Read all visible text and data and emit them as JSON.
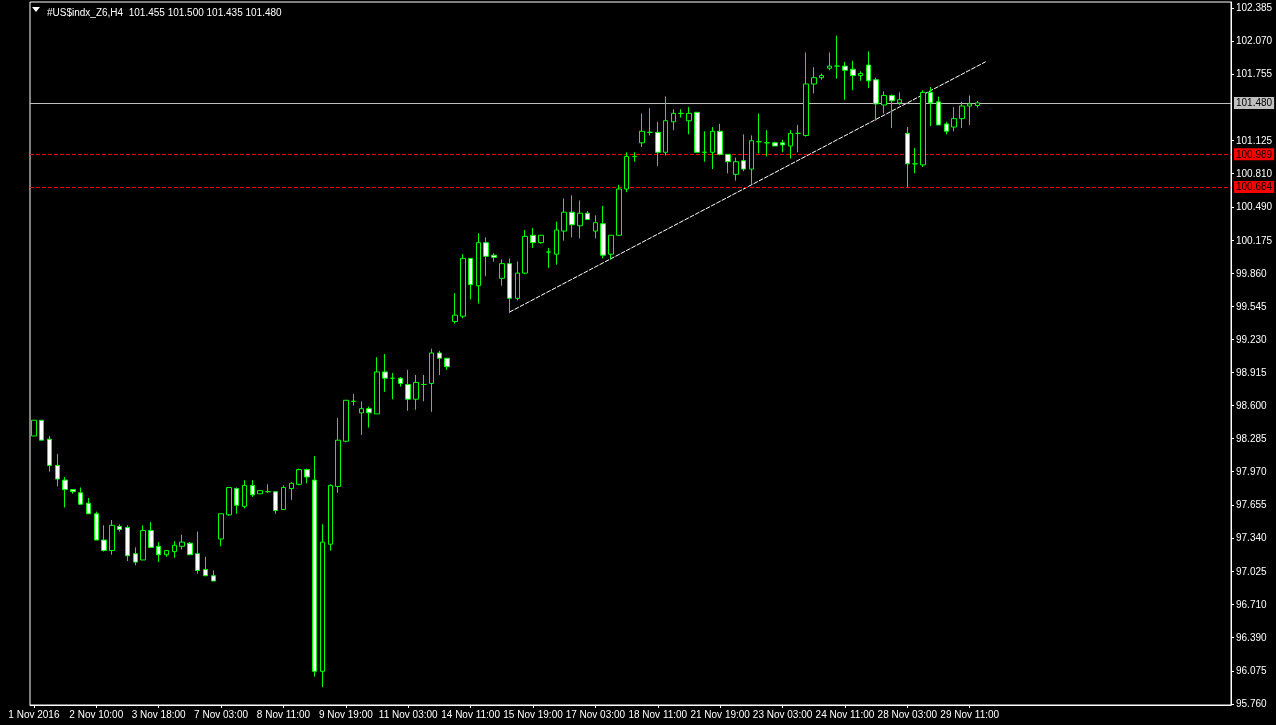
{
  "chart_data": {
    "type": "candlestick",
    "title": "#US$indx_Z6,H4  101.455 101.500 101.435 101.480",
    "color": "#00ff00",
    "categories": [
      "1 Nov 2016",
      null,
      null,
      null,
      null,
      null,
      null,
      null,
      "2 Nov 10:00",
      null,
      null,
      null,
      null,
      null,
      null,
      null,
      "3 Nov 18:00",
      null,
      null,
      null,
      null,
      null,
      null,
      null,
      "7 Nov 03:00",
      null,
      null,
      null,
      null,
      null,
      null,
      null,
      "8 Nov 11:00",
      null,
      null,
      null,
      null,
      null,
      null,
      null,
      "9 Nov 19:00",
      null,
      null,
      null,
      null,
      null,
      null,
      null,
      "11 Nov 03:00",
      null,
      null,
      null,
      null,
      null,
      null,
      null,
      "14 Nov 11:00",
      null,
      null,
      null,
      null,
      null,
      null,
      null,
      "15 Nov 19:00",
      null,
      null,
      null,
      null,
      null,
      null,
      null,
      "17 Nov 03:00",
      null,
      null,
      null,
      null,
      null,
      null,
      null,
      "18 Nov 11:00",
      null,
      null,
      null,
      null,
      null,
      null,
      null,
      "21 Nov 19:00",
      null,
      null,
      null,
      null,
      null,
      null,
      null,
      "23 Nov 03:00",
      null,
      null,
      null,
      null,
      null,
      null,
      null,
      "24 Nov 11:00",
      null,
      null,
      null,
      null,
      null,
      null,
      null,
      "28 Nov 03:00",
      null,
      null,
      null,
      null,
      null,
      null,
      null,
      "29 Nov 11:00",
      null,
      null,
      null,
      null,
      null,
      null,
      null,
      null,
      null,
      null,
      null,
      null,
      null,
      null,
      null,
      null,
      null,
      null,
      null,
      null,
      null,
      null,
      null,
      null,
      null,
      null,
      null,
      null,
      null,
      null,
      null,
      null,
      null
    ],
    "ohlc": [
      [
        98.31,
        98.46,
        98.31,
        98.46
      ],
      [
        98.46,
        98.46,
        98.27,
        98.27
      ],
      [
        98.28,
        98.31,
        97.97,
        98.03
      ],
      [
        98.03,
        98.14,
        97.83,
        97.9
      ],
      [
        97.89,
        97.92,
        97.63,
        97.8
      ],
      [
        97.8,
        97.8,
        97.76,
        97.78
      ],
      [
        97.77,
        97.82,
        97.66,
        97.66
      ],
      [
        97.67,
        97.72,
        97.57,
        97.57
      ],
      [
        97.57,
        97.59,
        97.32,
        97.32
      ],
      [
        97.32,
        97.46,
        97.21,
        97.22
      ],
      [
        97.22,
        97.51,
        97.18,
        97.46
      ],
      [
        97.45,
        97.47,
        97.4,
        97.42
      ],
      [
        97.44,
        97.46,
        97.12,
        97.17
      ],
      [
        97.19,
        97.25,
        97.08,
        97.11
      ],
      [
        97.13,
        97.46,
        97.13,
        97.41
      ],
      [
        97.41,
        97.49,
        97.25,
        97.25
      ],
      [
        97.26,
        97.3,
        97.11,
        97.18
      ],
      [
        97.18,
        97.22,
        97.16,
        97.22
      ],
      [
        97.21,
        97.31,
        97.15,
        97.27
      ],
      [
        97.26,
        97.37,
        97.23,
        97.3
      ],
      [
        97.29,
        97.3,
        97.18,
        97.18
      ],
      [
        97.19,
        97.4,
        97.0,
        97.03
      ],
      [
        97.04,
        97.16,
        96.98,
        96.98
      ],
      [
        96.98,
        97.03,
        96.93,
        96.93
      ],
      [
        97.33,
        97.57,
        97.26,
        97.57
      ],
      [
        97.56,
        97.82,
        97.55,
        97.82
      ],
      [
        97.81,
        97.82,
        97.57,
        97.65
      ],
      [
        97.64,
        97.89,
        97.62,
        97.84
      ],
      [
        97.84,
        97.89,
        97.73,
        97.75
      ],
      [
        97.76,
        97.79,
        97.76,
        97.79
      ],
      [
        97.78,
        97.85,
        97.77,
        97.78
      ],
      [
        97.78,
        97.78,
        97.57,
        97.6
      ],
      [
        97.61,
        97.84,
        97.61,
        97.82
      ],
      [
        97.81,
        97.87,
        97.7,
        97.86
      ],
      [
        97.85,
        98.0,
        97.84,
        97.99
      ],
      [
        97.99,
        98.0,
        97.86,
        97.92
      ],
      [
        97.89,
        98.12,
        96.02,
        96.07
      ],
      [
        96.07,
        97.47,
        95.92,
        97.3
      ],
      [
        97.28,
        97.85,
        97.22,
        97.84
      ],
      [
        97.83,
        98.48,
        97.77,
        98.27
      ],
      [
        98.26,
        98.65,
        98.25,
        98.65
      ],
      [
        98.64,
        98.71,
        98.6,
        98.64
      ],
      [
        98.53,
        98.64,
        98.32,
        98.57
      ],
      [
        98.57,
        98.59,
        98.39,
        98.53
      ],
      [
        98.52,
        99.06,
        98.52,
        98.92
      ],
      [
        98.92,
        99.09,
        98.73,
        98.86
      ],
      [
        98.86,
        98.91,
        98.66,
        98.86
      ],
      [
        98.86,
        98.87,
        98.78,
        98.81
      ],
      [
        98.8,
        98.94,
        98.55,
        98.66
      ],
      [
        98.66,
        98.89,
        98.56,
        98.82
      ],
      [
        98.8,
        98.89,
        98.64,
        98.8
      ],
      [
        98.81,
        99.14,
        98.54,
        99.1
      ],
      [
        99.1,
        99.12,
        98.89,
        99.05
      ],
      [
        99.05,
        99.05,
        98.94,
        98.97
      ],
      [
        99.4,
        99.67,
        99.38,
        99.46
      ],
      [
        99.45,
        100.04,
        99.43,
        100.0
      ],
      [
        100.0,
        100.0,
        99.61,
        99.75
      ],
      [
        99.74,
        100.24,
        99.57,
        100.15
      ],
      [
        100.15,
        100.2,
        99.83,
        100.02
      ],
      [
        100.03,
        100.05,
        99.97,
        100.01
      ],
      [
        99.81,
        99.99,
        99.74,
        99.95
      ],
      [
        99.95,
        100.0,
        99.48,
        99.62
      ],
      [
        99.62,
        99.97,
        99.6,
        99.86
      ],
      [
        99.86,
        100.27,
        99.85,
        100.21
      ],
      [
        100.22,
        100.29,
        100.1,
        100.15
      ],
      [
        100.15,
        100.22,
        100.14,
        100.22
      ],
      [
        100.06,
        100.1,
        99.91,
        100.06
      ],
      [
        100.04,
        100.35,
        99.94,
        100.27
      ],
      [
        100.26,
        100.57,
        100.17,
        100.44
      ],
      [
        100.44,
        100.6,
        100.2,
        100.32
      ],
      [
        100.31,
        100.55,
        100.19,
        100.43
      ],
      [
        100.43,
        100.45,
        100.37,
        100.37
      ],
      [
        100.26,
        100.41,
        100.19,
        100.34
      ],
      [
        100.33,
        100.5,
        100.0,
        100.03
      ],
      [
        100.04,
        100.22,
        99.99,
        100.22
      ],
      [
        100.22,
        100.7,
        100.22,
        100.66
      ],
      [
        100.66,
        101.01,
        100.63,
        100.97
      ],
      [
        100.97,
        101.01,
        100.92,
        100.97
      ],
      [
        101.1,
        101.38,
        101.06,
        101.21
      ],
      [
        101.2,
        101.43,
        101.17,
        101.2
      ],
      [
        101.2,
        101.3,
        100.88,
        101.01
      ],
      [
        101.01,
        101.54,
        100.98,
        101.31
      ],
      [
        101.3,
        101.42,
        101.22,
        101.38
      ],
      [
        101.38,
        101.42,
        101.34,
        101.38
      ],
      [
        101.31,
        101.44,
        101.18,
        101.38
      ],
      [
        101.39,
        101.39,
        101.01,
        101.01
      ],
      [
        101.01,
        101.21,
        100.92,
        101.01
      ],
      [
        101.01,
        101.25,
        100.85,
        101.21
      ],
      [
        101.21,
        101.28,
        100.98,
        100.99
      ],
      [
        100.99,
        100.99,
        100.81,
        100.92
      ],
      [
        100.8,
        100.96,
        100.74,
        100.92
      ],
      [
        100.93,
        101.18,
        100.83,
        100.85
      ],
      [
        100.85,
        101.17,
        100.71,
        101.12
      ],
      [
        101.11,
        101.38,
        101.0,
        101.11
      ],
      [
        101.1,
        101.22,
        100.97,
        101.1
      ],
      [
        101.1,
        101.11,
        101.07,
        101.07
      ],
      [
        101.1,
        101.13,
        101.01,
        101.08
      ],
      [
        101.07,
        101.22,
        100.95,
        101.19
      ],
      [
        101.19,
        101.27,
        101.01,
        101.19
      ],
      [
        101.17,
        101.96,
        101.16,
        101.66
      ],
      [
        101.66,
        101.82,
        101.57,
        101.72
      ],
      [
        101.72,
        101.76,
        101.7,
        101.74
      ],
      [
        101.81,
        101.96,
        101.79,
        101.83
      ],
      [
        101.83,
        102.12,
        101.71,
        101.83
      ],
      [
        101.83,
        101.87,
        101.51,
        101.79
      ],
      [
        101.8,
        101.88,
        101.6,
        101.74
      ],
      [
        101.74,
        101.78,
        101.69,
        101.76
      ],
      [
        101.84,
        101.97,
        101.62,
        101.69
      ],
      [
        101.7,
        101.72,
        101.31,
        101.47
      ],
      [
        101.46,
        101.59,
        101.38,
        101.55
      ],
      [
        101.55,
        101.56,
        101.24,
        101.5
      ],
      [
        101.48,
        101.58,
        101.46,
        101.51
      ],
      [
        101.19,
        101.25,
        100.68,
        100.9
      ],
      [
        100.9,
        101.05,
        100.81,
        100.9
      ],
      [
        100.89,
        101.6,
        100.87,
        101.58
      ],
      [
        101.58,
        101.63,
        101.26,
        101.48
      ],
      [
        101.49,
        101.54,
        101.27,
        101.27
      ],
      [
        101.28,
        101.3,
        101.18,
        101.21
      ],
      [
        101.25,
        101.44,
        101.21,
        101.33
      ],
      [
        101.33,
        101.49,
        101.24,
        101.45
      ],
      [
        101.45,
        101.55,
        101.27,
        101.47
      ],
      [
        101.455,
        101.5,
        101.435,
        101.48
      ],
      null,
      null,
      null,
      null,
      null,
      null,
      null,
      null,
      null,
      null,
      null,
      null,
      null,
      null,
      null,
      null,
      null,
      null,
      null,
      null,
      null,
      null,
      null,
      null,
      null,
      null,
      null,
      null,
      null,
      null,
      null,
      null
    ],
    "ylim": [
      95.75,
      102.44
    ],
    "yticks": [
      {
        "value": 95.76,
        "label": "95.760"
      },
      {
        "value": 96.075,
        "label": "96.075"
      },
      {
        "value": 96.39,
        "label": "96.390"
      },
      {
        "value": 96.71,
        "label": "96.710"
      },
      {
        "value": 97.025,
        "label": "97.025"
      },
      {
        "value": 97.34,
        "label": "97.340"
      },
      {
        "value": 97.655,
        "label": "97.655"
      },
      {
        "value": 97.97,
        "label": "97.970"
      },
      {
        "value": 98.285,
        "label": "98.285"
      },
      {
        "value": 98.6,
        "label": "98.600"
      },
      {
        "value": 98.915,
        "label": "98.915"
      },
      {
        "value": 99.23,
        "label": "99.230"
      },
      {
        "value": 99.545,
        "label": "99.545"
      },
      {
        "value": 99.86,
        "label": "99.860"
      },
      {
        "value": 100.175,
        "label": "100.175"
      },
      {
        "value": 100.49,
        "label": "100.490"
      },
      {
        "value": 100.81,
        "label": "100.810"
      },
      {
        "value": 101.125,
        "label": "101.125"
      },
      {
        "value": 101.755,
        "label": "101.755"
      },
      {
        "value": 102.07,
        "label": "102.070"
      },
      {
        "value": 102.385,
        "label": "102.385"
      }
    ],
    "ref_lines": [
      {
        "axis": "y",
        "value": 101.48,
        "label": "101.480",
        "color": "#c0c0c0",
        "line_style": "solid"
      },
      {
        "axis": "y",
        "value": 100.989,
        "label": "100.989",
        "color": "#ff0000",
        "line_style": "dashed"
      },
      {
        "axis": "y",
        "value": 100.684,
        "label": "100.684",
        "color": "#ff0000",
        "line_style": "dashed"
      }
    ],
    "series": [
      {
        "type": "line",
        "color": "#ffffff",
        "line_style": "dashed",
        "marker": "none",
        "values": [
          null,
          null,
          null,
          null,
          null,
          null,
          null,
          null,
          null,
          null,
          null,
          null,
          null,
          null,
          null,
          null,
          null,
          null,
          null,
          null,
          null,
          null,
          null,
          null,
          null,
          null,
          null,
          null,
          null,
          null,
          null,
          null,
          null,
          null,
          null,
          null,
          null,
          null,
          null,
          null,
          null,
          null,
          null,
          null,
          null,
          null,
          null,
          null,
          null,
          null,
          null,
          null,
          null,
          null,
          null,
          null,
          null,
          null,
          null,
          null,
          null,
          99.49,
          null,
          null,
          null,
          null,
          null,
          null,
          null,
          null,
          null,
          null,
          null,
          null,
          null,
          null,
          null,
          null,
          null,
          null,
          null,
          null,
          null,
          null,
          null,
          null,
          null,
          null,
          null,
          null,
          null,
          null,
          null,
          null,
          null,
          null,
          null,
          null,
          null,
          null,
          null,
          null,
          null,
          null,
          null,
          null,
          null,
          null,
          null,
          null,
          null,
          null,
          null,
          null,
          null,
          null,
          null,
          null,
          null,
          null,
          null,
          null,
          101.87,
          null,
          null,
          null,
          null,
          null,
          null,
          null,
          null,
          null,
          null,
          null,
          null,
          null,
          null,
          null,
          null,
          null,
          null,
          null,
          null,
          null,
          null,
          null,
          null,
          null,
          null,
          null,
          null,
          null,
          null,
          null
        ]
      }
    ]
  }
}
